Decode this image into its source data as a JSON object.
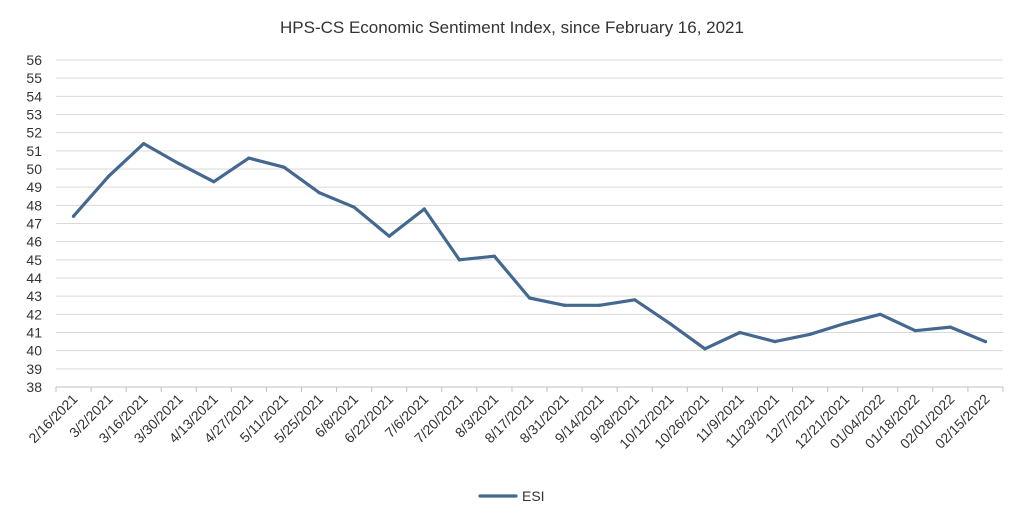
{
  "chart_data": {
    "type": "line",
    "title": "HPS-CS Economic Sentiment Index, since February 16, 2021",
    "xlabel": "",
    "ylabel": "",
    "ylim": [
      38,
      56
    ],
    "y_ticks": [
      "38",
      "39",
      "40",
      "41",
      "42",
      "43",
      "44",
      "45",
      "46",
      "47",
      "48",
      "49",
      "50",
      "51",
      "52",
      "53",
      "54",
      "55",
      "56"
    ],
    "grid": true,
    "legend_position": "bottom-center",
    "categories": [
      "2/16/2021",
      "3/2/2021",
      "3/16/2021",
      "3/30/2021",
      "4/13/2021",
      "4/27/2021",
      "5/11/2021",
      "5/25/2021",
      "6/8/2021",
      "6/22/2021",
      "7/6/2021",
      "7/20/2021",
      "8/3/2021",
      "8/17/2021",
      "8/31/2021",
      "9/14/2021",
      "9/28/2021",
      "10/12/2021",
      "10/26/2021",
      "11/9/2021",
      "11/23/2021",
      "12/7/2021",
      "12/21/2021",
      "01/04/2022",
      "01/18/2022",
      "02/01/2022",
      "02/15/2022"
    ],
    "series": [
      {
        "name": "ESI",
        "color": "#44688f",
        "values": [
          47.4,
          49.6,
          51.4,
          50.3,
          49.3,
          50.6,
          50.1,
          48.7,
          47.9,
          46.3,
          47.8,
          45.0,
          45.2,
          42.9,
          42.5,
          42.5,
          42.8,
          41.5,
          40.1,
          41.0,
          40.5,
          40.9,
          41.5,
          42.0,
          41.1,
          41.3,
          40.5
        ]
      }
    ]
  }
}
